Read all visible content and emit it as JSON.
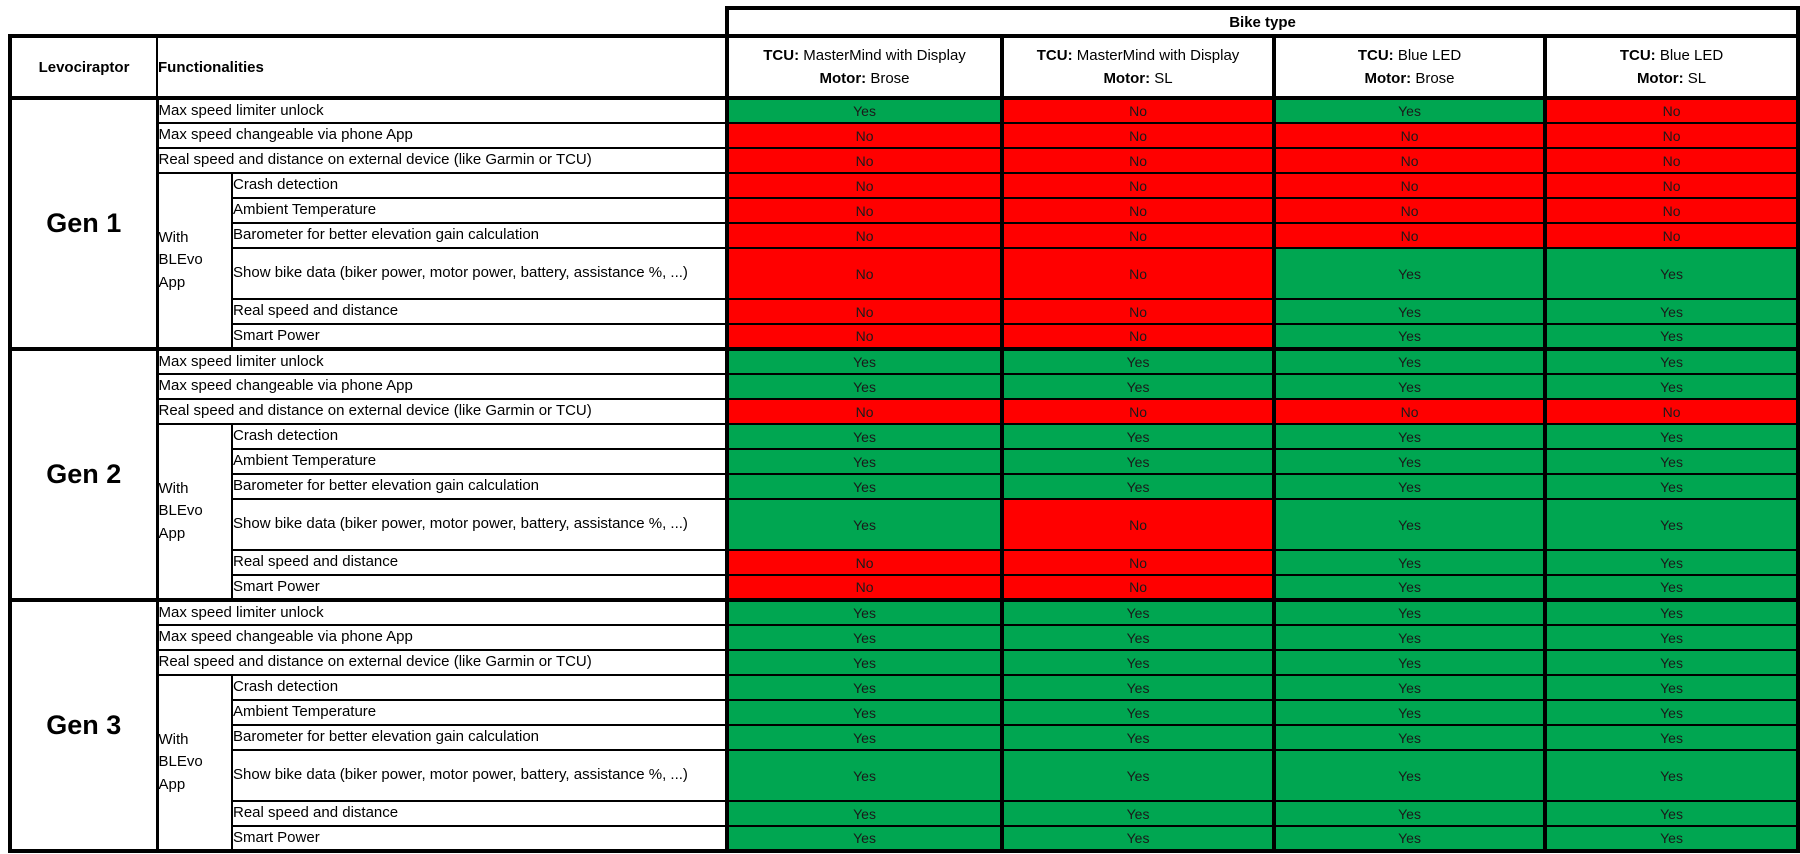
{
  "table": {
    "banner": "Bike type",
    "corner_label": "Levociraptor",
    "functionalities_label": "Functionalities",
    "tcu_prefix": "TCU:",
    "motor_prefix": "Motor:",
    "columns": [
      {
        "tcu": "MasterMind with Display",
        "motor": "Brose"
      },
      {
        "tcu": "MasterMind with Display",
        "motor": "SL"
      },
      {
        "tcu": "Blue LED",
        "motor": "Brose"
      },
      {
        "tcu": "Blue LED",
        "motor": "SL"
      }
    ],
    "with_app_label": "With BLEvo App",
    "features_top": [
      "Max speed limiter unlock",
      "Max speed changeable via phone App",
      "Real speed and distance on external device (like Garmin or TCU)"
    ],
    "features_app": [
      "Crash detection",
      "Ambient Temperature",
      "Barometer for better elevation gain calculation",
      "Show bike data (biker power, motor power, battery, assistance %, ...)",
      "Real speed and distance",
      "Smart Power"
    ],
    "generations": [
      {
        "name": "Gen 1",
        "values": [
          [
            "Yes",
            "No",
            "Yes",
            "No"
          ],
          [
            "No",
            "No",
            "No",
            "No"
          ],
          [
            "No",
            "No",
            "No",
            "No"
          ],
          [
            "No",
            "No",
            "No",
            "No"
          ],
          [
            "No",
            "No",
            "No",
            "No"
          ],
          [
            "No",
            "No",
            "No",
            "No"
          ],
          [
            "No",
            "No",
            "Yes",
            "Yes"
          ],
          [
            "No",
            "No",
            "Yes",
            "Yes"
          ],
          [
            "No",
            "No",
            "Yes",
            "Yes"
          ]
        ]
      },
      {
        "name": "Gen 2",
        "values": [
          [
            "Yes",
            "Yes",
            "Yes",
            "Yes"
          ],
          [
            "Yes",
            "Yes",
            "Yes",
            "Yes"
          ],
          [
            "No",
            "No",
            "No",
            "No"
          ],
          [
            "Yes",
            "Yes",
            "Yes",
            "Yes"
          ],
          [
            "Yes",
            "Yes",
            "Yes",
            "Yes"
          ],
          [
            "Yes",
            "Yes",
            "Yes",
            "Yes"
          ],
          [
            "Yes",
            "No",
            "Yes",
            "Yes"
          ],
          [
            "No",
            "No",
            "Yes",
            "Yes"
          ],
          [
            "No",
            "No",
            "Yes",
            "Yes"
          ]
        ]
      },
      {
        "name": "Gen 3",
        "values": [
          [
            "Yes",
            "Yes",
            "Yes",
            "Yes"
          ],
          [
            "Yes",
            "Yes",
            "Yes",
            "Yes"
          ],
          [
            "Yes",
            "Yes",
            "Yes",
            "Yes"
          ],
          [
            "Yes",
            "Yes",
            "Yes",
            "Yes"
          ],
          [
            "Yes",
            "Yes",
            "Yes",
            "Yes"
          ],
          [
            "Yes",
            "Yes",
            "Yes",
            "Yes"
          ],
          [
            "Yes",
            "Yes",
            "Yes",
            "Yes"
          ],
          [
            "Yes",
            "Yes",
            "Yes",
            "Yes"
          ],
          [
            "Yes",
            "Yes",
            "Yes",
            "Yes"
          ]
        ]
      }
    ],
    "colors": {
      "yes_bg": "#00A651",
      "no_bg": "#FF0000",
      "border": "#000000",
      "header_bg": "#FFFFFF",
      "text": "#000000",
      "value_text": "#1A1A1A"
    }
  }
}
